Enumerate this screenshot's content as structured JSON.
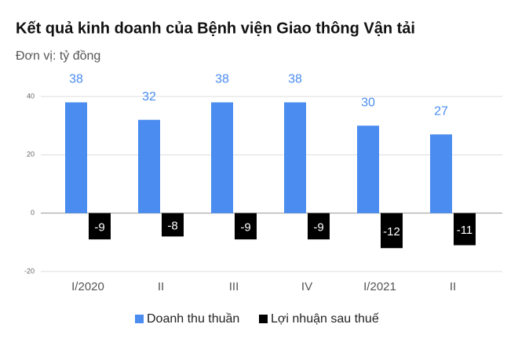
{
  "chart_data": {
    "type": "bar",
    "title": "Kết quả kinh doanh của Bệnh viện Giao thông Vận tải",
    "subtitle": "Đơn vị: tỷ đồng",
    "categories": [
      "I/2020",
      "II",
      "III",
      "IV",
      "I/2021",
      "II"
    ],
    "series": [
      {
        "name": "Doanh thu thuần",
        "color": "#4a8cf0",
        "values": [
          38,
          32,
          38,
          38,
          30,
          27
        ]
      },
      {
        "name": "Lợi nhuận sau thuế",
        "color": "#000000",
        "values": [
          -9,
          -8,
          -9,
          -9,
          -12,
          -11
        ]
      }
    ],
    "ylim": [
      -20,
      40
    ],
    "yticks": [
      -20,
      0,
      20,
      40
    ],
    "grid": true,
    "legend": "bottom"
  }
}
